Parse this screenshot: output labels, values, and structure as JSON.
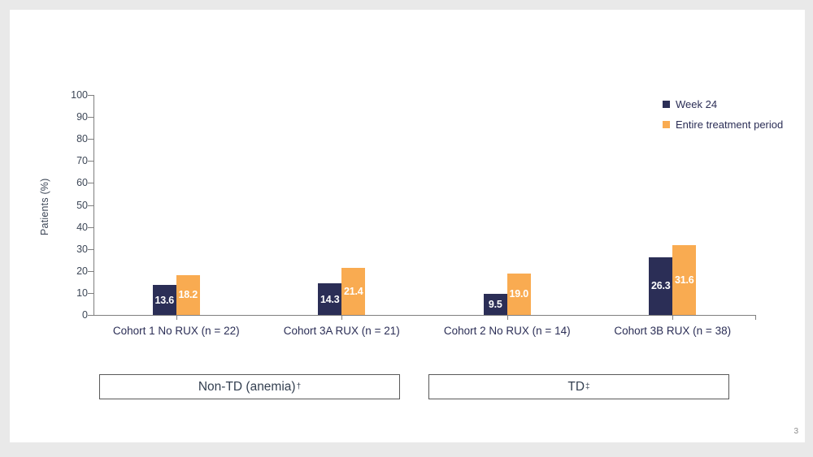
{
  "page": {
    "page_number": "3"
  },
  "chart_data": {
    "type": "bar",
    "title": "",
    "ylabel": "Patients (%)",
    "ylim": [
      0,
      100
    ],
    "yticks": [
      0,
      10,
      20,
      30,
      40,
      50,
      60,
      70,
      80,
      90,
      100
    ],
    "grid": false,
    "legend_position": "top-right",
    "categories": [
      "Cohort 1 No RUX (n = 22)",
      "Cohort 3A RUX (n = 21)",
      "Cohort 2 No RUX (n = 14)",
      "Cohort 3B RUX (n = 38)"
    ],
    "series": [
      {
        "name": "Week 24",
        "color": "#2b2e56",
        "values": [
          13.6,
          14.3,
          9.5,
          26.3
        ],
        "labels": [
          "13.6",
          "14.3",
          "9.5",
          "26.3"
        ]
      },
      {
        "name": "Entire treatment period",
        "color": "#f9ab51",
        "values": [
          18.2,
          21.4,
          19.0,
          31.6
        ],
        "labels": [
          "18.2",
          "21.4",
          "19.0",
          "31.6"
        ]
      }
    ],
    "value_label_color": "#ffffff"
  },
  "group_boxes": [
    {
      "label": "Non-TD (anemia)",
      "superscript": "†"
    },
    {
      "label": "TD",
      "superscript": "‡"
    }
  ],
  "colors": {
    "axis": "#7f7f7f",
    "tick_text": "#3d4757",
    "category_text": "#2b2e56",
    "box_border": "#595959",
    "box_text": "#333f50",
    "page_number": "#8c8c8c",
    "slide_background": "#ffffff",
    "outer_background": "#e9e9e9"
  }
}
